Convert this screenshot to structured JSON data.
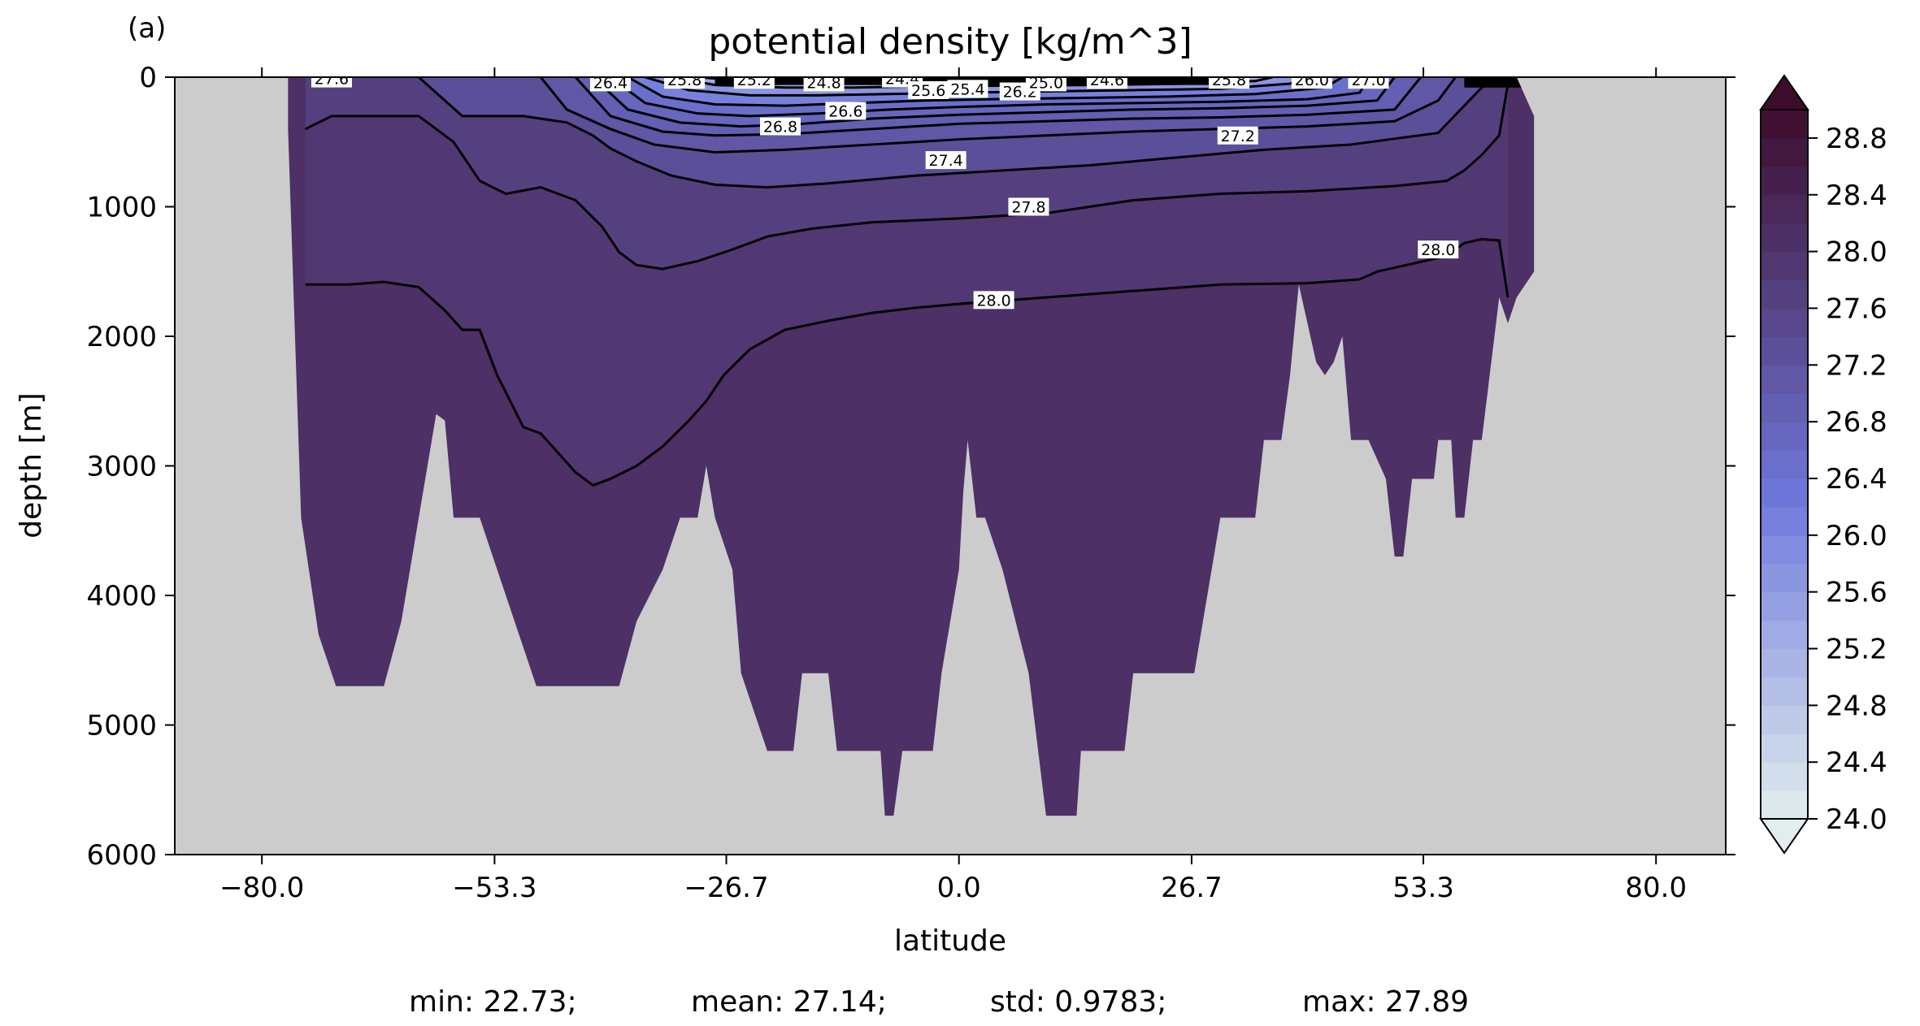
{
  "panel_label": "(a)",
  "stats": {
    "min": "min: 22.73;",
    "mean": "mean: 27.14;",
    "std": "std: 0.9783;",
    "max": "max: 27.89"
  },
  "colors": {
    "land": "#cccccc",
    "contour": "#000000",
    "colormap_low": "#e2eeee",
    "colormap_mid": "#6f79dc",
    "colormap_high": "#3d0c2c"
  },
  "chart_data": {
    "type": "contourf",
    "title": "potential density [kg/m^3]",
    "xlabel": "latitude",
    "ylabel": "depth [m]",
    "xlim": [
      -90,
      88
    ],
    "ylim": [
      6000,
      0
    ],
    "xticks": [
      -80.0,
      -53.3,
      -26.7,
      0.0,
      26.7,
      53.3,
      80.0
    ],
    "xtick_labels": [
      "−80.0",
      "−53.3",
      "−26.7",
      "0.0",
      "26.7",
      "53.3",
      "80.0"
    ],
    "yticks": [
      0,
      1000,
      2000,
      3000,
      4000,
      5000,
      6000
    ],
    "ytick_labels": [
      "0",
      "1000",
      "2000",
      "3000",
      "4000",
      "5000",
      "6000"
    ],
    "colorbar": {
      "min": 24.0,
      "max": 29.0,
      "step": 0.2,
      "extend": "both",
      "ticks": [
        24.0,
        24.4,
        24.8,
        25.2,
        25.6,
        26.0,
        26.4,
        26.8,
        27.2,
        27.6,
        28.0,
        28.4,
        28.8
      ],
      "tick_labels": [
        "24.0",
        "24.4",
        "24.8",
        "25.2",
        "25.6",
        "26.0",
        "26.4",
        "26.8",
        "27.2",
        "27.6",
        "28.0",
        "28.4",
        "28.8"
      ]
    },
    "ocean_mask_bottom": [
      [
        -77,
        400
      ],
      [
        -75.5,
        3400
      ],
      [
        -73.5,
        4300
      ],
      [
        -71.5,
        4700
      ],
      [
        -66,
        4700
      ],
      [
        -64,
        4200
      ],
      [
        -60,
        2600
      ],
      [
        -59,
        2650
      ],
      [
        -58,
        3400
      ],
      [
        -55,
        3400
      ],
      [
        -53,
        3800
      ],
      [
        -51,
        4200
      ],
      [
        -48.5,
        4700
      ],
      [
        -39,
        4700
      ],
      [
        -37,
        4200
      ],
      [
        -34,
        3800
      ],
      [
        -32,
        3400
      ],
      [
        -30,
        3400
      ],
      [
        -29,
        3000
      ],
      [
        -28,
        3400
      ],
      [
        -26,
        3800
      ],
      [
        -25,
        4600
      ],
      [
        -22,
        5200
      ],
      [
        -19,
        5200
      ],
      [
        -18,
        4600
      ],
      [
        -15,
        4600
      ],
      [
        -14,
        5200
      ],
      [
        -9,
        5200
      ],
      [
        -8.5,
        5700
      ],
      [
        -7.5,
        5700
      ],
      [
        -6.5,
        5200
      ],
      [
        -3,
        5200
      ],
      [
        -2,
        4600
      ],
      [
        0,
        3800
      ],
      [
        0.5,
        3200
      ],
      [
        1,
        2800
      ],
      [
        2,
        3400
      ],
      [
        3,
        3400
      ],
      [
        5,
        3800
      ],
      [
        8,
        4600
      ],
      [
        10,
        5700
      ],
      [
        13.5,
        5700
      ],
      [
        14,
        5200
      ],
      [
        19,
        5200
      ],
      [
        20,
        4600
      ],
      [
        27,
        4600
      ],
      [
        29,
        3800
      ],
      [
        30,
        3400
      ],
      [
        34,
        3400
      ],
      [
        35,
        2800
      ],
      [
        37,
        2800
      ],
      [
        38,
        2300
      ],
      [
        39,
        1600
      ],
      [
        40,
        1900
      ],
      [
        41,
        2200
      ],
      [
        42,
        2300
      ],
      [
        43,
        2200
      ],
      [
        44,
        2000
      ],
      [
        45,
        2800
      ],
      [
        47,
        2800
      ],
      [
        49,
        3100
      ],
      [
        50,
        3700
      ],
      [
        51,
        3700
      ],
      [
        52,
        3100
      ],
      [
        54.5,
        3100
      ],
      [
        55,
        2800
      ],
      [
        56.5,
        2800
      ],
      [
        57,
        3400
      ],
      [
        58,
        3400
      ],
      [
        59,
        2800
      ],
      [
        60,
        2800
      ],
      [
        62,
        1700
      ],
      [
        63,
        1900
      ],
      [
        64,
        1700
      ],
      [
        66,
        1500
      ],
      [
        66,
        300
      ],
      [
        64,
        0
      ]
    ],
    "density_levels": [
      {
        "value": 28.0,
        "boundary": [
          [
            -75,
            1600
          ],
          [
            -70,
            1600
          ],
          [
            -66,
            1580
          ],
          [
            -62,
            1620
          ],
          [
            -59,
            1800
          ],
          [
            -57,
            1950
          ],
          [
            -55,
            1950
          ],
          [
            -53,
            2300
          ],
          [
            -50,
            2700
          ],
          [
            -48,
            2750
          ],
          [
            -46,
            2900
          ],
          [
            -44,
            3050
          ],
          [
            -42,
            3150
          ],
          [
            -40,
            3100
          ],
          [
            -37,
            3000
          ],
          [
            -34,
            2850
          ],
          [
            -31,
            2650
          ],
          [
            -29,
            2500
          ],
          [
            -27,
            2300
          ],
          [
            -24,
            2100
          ],
          [
            -20,
            1950
          ],
          [
            -15,
            1880
          ],
          [
            -10,
            1820
          ],
          [
            -5,
            1780
          ],
          [
            0,
            1750
          ],
          [
            10,
            1700
          ],
          [
            20,
            1650
          ],
          [
            30,
            1600
          ],
          [
            40,
            1590
          ],
          [
            46,
            1560
          ],
          [
            48,
            1500
          ],
          [
            52,
            1440
          ],
          [
            56,
            1380
          ],
          [
            58,
            1280
          ],
          [
            60,
            1250
          ],
          [
            62,
            1260
          ],
          [
            63,
            1700
          ]
        ]
      },
      {
        "value": 27.8,
        "boundary": [
          [
            -75,
            400
          ],
          [
            -72,
            300
          ],
          [
            -62,
            300
          ],
          [
            -58,
            500
          ],
          [
            -55,
            800
          ],
          [
            -52,
            900
          ],
          [
            -48,
            850
          ],
          [
            -44,
            950
          ],
          [
            -41,
            1150
          ],
          [
            -39,
            1350
          ],
          [
            -37,
            1450
          ],
          [
            -34,
            1480
          ],
          [
            -30,
            1420
          ],
          [
            -26,
            1330
          ],
          [
            -22,
            1230
          ],
          [
            -17,
            1170
          ],
          [
            -10,
            1120
          ],
          [
            0,
            1090
          ],
          [
            10,
            1050
          ],
          [
            20,
            950
          ],
          [
            30,
            900
          ],
          [
            40,
            880
          ],
          [
            50,
            840
          ],
          [
            56,
            800
          ],
          [
            58,
            720
          ],
          [
            60,
            600
          ],
          [
            62,
            450
          ],
          [
            63,
            50
          ]
        ]
      },
      {
        "value": 27.4,
        "boundary": [
          [
            -62,
            0
          ],
          [
            -57,
            300
          ],
          [
            -50,
            300
          ],
          [
            -45,
            350
          ],
          [
            -42,
            450
          ],
          [
            -40,
            550
          ],
          [
            -37,
            650
          ],
          [
            -33,
            760
          ],
          [
            -28,
            830
          ],
          [
            -22,
            850
          ],
          [
            -15,
            820
          ],
          [
            -5,
            760
          ],
          [
            5,
            720
          ],
          [
            15,
            680
          ],
          [
            25,
            620
          ],
          [
            35,
            560
          ],
          [
            45,
            520
          ],
          [
            55,
            430
          ],
          [
            60,
            80
          ],
          [
            62,
            0
          ]
        ]
      },
      {
        "value": 27.2,
        "boundary": [
          [
            -48,
            0
          ],
          [
            -45,
            250
          ],
          [
            -40,
            400
          ],
          [
            -35,
            520
          ],
          [
            -28,
            580
          ],
          [
            -20,
            560
          ],
          [
            -10,
            520
          ],
          [
            0,
            480
          ],
          [
            10,
            450
          ],
          [
            20,
            420
          ],
          [
            30,
            400
          ],
          [
            40,
            380
          ],
          [
            50,
            340
          ],
          [
            55,
            180
          ],
          [
            57,
            0
          ]
        ]
      },
      {
        "value": 27.0,
        "boundary": [
          [
            -44,
            0
          ],
          [
            -40,
            300
          ],
          [
            -34,
            420
          ],
          [
            -28,
            450
          ],
          [
            -20,
            440
          ],
          [
            -10,
            400
          ],
          [
            0,
            360
          ],
          [
            10,
            340
          ],
          [
            20,
            320
          ],
          [
            30,
            310
          ],
          [
            40,
            290
          ],
          [
            50,
            250
          ],
          [
            53,
            0
          ]
        ]
      },
      {
        "value": 26.8,
        "boundary": [
          [
            -42,
            0
          ],
          [
            -38,
            250
          ],
          [
            -32,
            350
          ],
          [
            -25,
            380
          ],
          [
            -18,
            360
          ],
          [
            -10,
            320
          ],
          [
            0,
            290
          ],
          [
            10,
            270
          ],
          [
            20,
            250
          ],
          [
            30,
            240
          ],
          [
            40,
            220
          ],
          [
            48,
            180
          ],
          [
            50,
            0
          ]
        ]
      },
      {
        "value": 26.6,
        "boundary": [
          [
            -40,
            0
          ],
          [
            -36,
            200
          ],
          [
            -30,
            280
          ],
          [
            -24,
            300
          ],
          [
            -16,
            280
          ],
          [
            -8,
            250
          ],
          [
            0,
            230
          ],
          [
            10,
            210
          ],
          [
            20,
            200
          ],
          [
            30,
            190
          ],
          [
            40,
            170
          ],
          [
            46,
            120
          ],
          [
            47,
            0
          ]
        ]
      },
      {
        "value": 26.2,
        "boundary": [
          [
            -38,
            0
          ],
          [
            -34,
            150
          ],
          [
            -28,
            210
          ],
          [
            -20,
            220
          ],
          [
            -12,
            200
          ],
          [
            -4,
            180
          ],
          [
            4,
            170
          ],
          [
            14,
            160
          ],
          [
            24,
            150
          ],
          [
            34,
            130
          ],
          [
            42,
            80
          ],
          [
            44,
            0
          ]
        ]
      },
      {
        "value": 25.8,
        "boundary": [
          [
            -36,
            0
          ],
          [
            -31,
            100
          ],
          [
            -24,
            140
          ],
          [
            -16,
            140
          ],
          [
            -8,
            130
          ],
          [
            0,
            120
          ],
          [
            10,
            110
          ],
          [
            20,
            100
          ],
          [
            30,
            90
          ],
          [
            38,
            50
          ],
          [
            40,
            0
          ]
        ]
      },
      {
        "value": 25.4,
        "boundary": [
          [
            -33,
            0
          ],
          [
            -28,
            60
          ],
          [
            -20,
            80
          ],
          [
            -12,
            80
          ],
          [
            -4,
            70
          ],
          [
            6,
            65
          ],
          [
            16,
            60
          ],
          [
            26,
            50
          ],
          [
            34,
            30
          ],
          [
            36,
            0
          ]
        ]
      },
      {
        "value": 24.8,
        "boundary": [
          [
            -30,
            0
          ],
          [
            -24,
            30
          ],
          [
            -16,
            40
          ],
          [
            -8,
            35
          ],
          [
            0,
            30
          ],
          [
            10,
            28
          ],
          [
            20,
            25
          ],
          [
            30,
            10
          ],
          [
            32,
            0
          ]
        ]
      }
    ],
    "contour_labels": [
      {
        "text": "27.6",
        "x": -72,
        "depth": 10
      },
      {
        "text": "26.4",
        "x": -40,
        "depth": 40
      },
      {
        "text": "25.8",
        "x": -31.5,
        "depth": 20
      },
      {
        "text": "25.2",
        "x": -23.5,
        "depth": 20
      },
      {
        "text": "24.8",
        "x": -15.5,
        "depth": 40
      },
      {
        "text": "24.4",
        "x": -6.5,
        "depth": 10
      },
      {
        "text": "25.6",
        "x": -3.5,
        "depth": 100
      },
      {
        "text": "25.4",
        "x": 1,
        "depth": 90
      },
      {
        "text": "26.2",
        "x": 7,
        "depth": 110
      },
      {
        "text": "25.0",
        "x": 10,
        "depth": 40
      },
      {
        "text": "24.6",
        "x": 17,
        "depth": 20
      },
      {
        "text": "25.8",
        "x": 31,
        "depth": 20
      },
      {
        "text": "26.0",
        "x": 40.5,
        "depth": 20
      },
      {
        "text": "27.0",
        "x": 47,
        "depth": 20
      },
      {
        "text": "26.8",
        "x": -20.5,
        "depth": 380
      },
      {
        "text": "26.6",
        "x": -13,
        "depth": 260
      },
      {
        "text": "27.2",
        "x": 32,
        "depth": 450
      },
      {
        "text": "27.4",
        "x": -1.5,
        "depth": 640
      },
      {
        "text": "27.8",
        "x": 8,
        "depth": 1000
      },
      {
        "text": "28.0",
        "x": 4,
        "depth": 1720
      },
      {
        "text": "28.0",
        "x": 55,
        "depth": 1330
      }
    ]
  }
}
